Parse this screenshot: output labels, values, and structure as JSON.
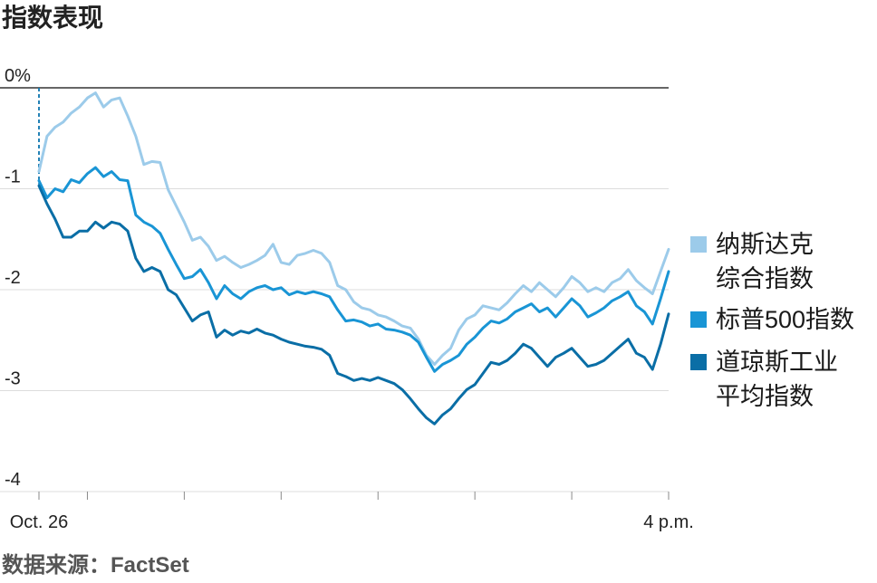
{
  "chart_data": {
    "type": "line",
    "title": "指数表现",
    "ylim": [
      -4,
      0
    ],
    "y_ticks": [
      {
        "value": 0,
        "label": "0%"
      },
      {
        "value": -1,
        "label": "-1"
      },
      {
        "value": -2,
        "label": "-2"
      },
      {
        "value": -3,
        "label": "-3"
      },
      {
        "value": -4,
        "label": "-4"
      }
    ],
    "x_labels": [
      {
        "x": "09:30",
        "label": "Oct. 26"
      },
      {
        "x": "16:00",
        "label": "4 p.m."
      }
    ],
    "grid": true,
    "legend": "right",
    "x": [
      "09:30",
      "09:35",
      "09:40",
      "09:45",
      "09:50",
      "09:55",
      "10:00",
      "10:05",
      "10:10",
      "10:15",
      "10:20",
      "10:25",
      "10:30",
      "10:35",
      "10:40",
      "10:45",
      "10:50",
      "10:55",
      "11:00",
      "11:05",
      "11:10",
      "11:15",
      "11:20",
      "11:25",
      "11:30",
      "11:35",
      "11:40",
      "11:45",
      "11:50",
      "11:55",
      "12:00",
      "12:05",
      "12:10",
      "12:15",
      "12:20",
      "12:25",
      "12:30",
      "12:35",
      "12:40",
      "12:45",
      "12:50",
      "12:55",
      "13:00",
      "13:05",
      "13:10",
      "13:15",
      "13:20",
      "13:25",
      "13:30",
      "13:35",
      "13:40",
      "13:45",
      "13:50",
      "13:55",
      "14:00",
      "14:05",
      "14:10",
      "14:15",
      "14:20",
      "14:25",
      "14:30",
      "14:35",
      "14:40",
      "14:45",
      "14:50",
      "14:55",
      "15:00",
      "15:05",
      "15:10",
      "15:15",
      "15:20",
      "15:25",
      "15:30",
      "15:35",
      "15:40",
      "15:45",
      "15:50",
      "15:55",
      "16:00"
    ],
    "series": [
      {
        "name": "纳斯达克综合指数",
        "color": "#9ccbea",
        "values": [
          -0.83,
          -0.48,
          -0.39,
          -0.34,
          -0.25,
          -0.19,
          -0.1,
          -0.05,
          -0.19,
          -0.12,
          -0.1,
          -0.28,
          -0.48,
          -0.76,
          -0.73,
          -0.74,
          -1.01,
          -1.17,
          -1.33,
          -1.51,
          -1.48,
          -1.57,
          -1.71,
          -1.67,
          -1.73,
          -1.78,
          -1.75,
          -1.71,
          -1.66,
          -1.55,
          -1.73,
          -1.75,
          -1.66,
          -1.64,
          -1.61,
          -1.64,
          -1.73,
          -1.96,
          -2.0,
          -2.12,
          -2.18,
          -2.2,
          -2.25,
          -2.27,
          -2.31,
          -2.36,
          -2.38,
          -2.49,
          -2.65,
          -2.74,
          -2.65,
          -2.58,
          -2.4,
          -2.29,
          -2.25,
          -2.16,
          -2.18,
          -2.2,
          -2.13,
          -2.04,
          -1.96,
          -2.02,
          -1.93,
          -2.0,
          -2.07,
          -1.98,
          -1.87,
          -1.93,
          -2.02,
          -1.98,
          -2.02,
          -1.93,
          -1.89,
          -1.8,
          -1.91,
          -1.98,
          -2.04,
          -1.82,
          -1.6
        ]
      },
      {
        "name": "标普500指数",
        "color": "#1995d5",
        "values": [
          -0.92,
          -1.09,
          -1.0,
          -1.03,
          -0.91,
          -0.94,
          -0.85,
          -0.79,
          -0.88,
          -0.83,
          -0.91,
          -0.92,
          -1.26,
          -1.33,
          -1.37,
          -1.44,
          -1.6,
          -1.75,
          -1.89,
          -1.87,
          -1.8,
          -1.93,
          -2.09,
          -1.96,
          -2.04,
          -2.09,
          -2.02,
          -1.98,
          -1.96,
          -2.0,
          -1.98,
          -2.05,
          -2.02,
          -2.04,
          -2.02,
          -2.04,
          -2.07,
          -2.2,
          -2.31,
          -2.3,
          -2.32,
          -2.36,
          -2.34,
          -2.39,
          -2.4,
          -2.42,
          -2.45,
          -2.52,
          -2.67,
          -2.81,
          -2.74,
          -2.7,
          -2.65,
          -2.54,
          -2.47,
          -2.38,
          -2.31,
          -2.33,
          -2.29,
          -2.22,
          -2.18,
          -2.14,
          -2.22,
          -2.18,
          -2.27,
          -2.18,
          -2.09,
          -2.16,
          -2.27,
          -2.23,
          -2.18,
          -2.11,
          -2.07,
          -2.02,
          -2.16,
          -2.22,
          -2.34,
          -2.09,
          -1.82
        ]
      },
      {
        "name": "道琼斯工业平均指数",
        "color": "#0a6ea6",
        "values": [
          -0.97,
          -1.15,
          -1.3,
          -1.48,
          -1.48,
          -1.42,
          -1.42,
          -1.33,
          -1.39,
          -1.33,
          -1.35,
          -1.42,
          -1.69,
          -1.82,
          -1.78,
          -1.82,
          -2.0,
          -2.05,
          -2.18,
          -2.31,
          -2.25,
          -2.22,
          -2.47,
          -2.4,
          -2.45,
          -2.41,
          -2.43,
          -2.39,
          -2.43,
          -2.45,
          -2.49,
          -2.52,
          -2.54,
          -2.56,
          -2.57,
          -2.59,
          -2.65,
          -2.83,
          -2.86,
          -2.9,
          -2.88,
          -2.9,
          -2.87,
          -2.9,
          -2.93,
          -2.99,
          -3.08,
          -3.18,
          -3.27,
          -3.33,
          -3.24,
          -3.18,
          -3.08,
          -2.99,
          -2.94,
          -2.83,
          -2.72,
          -2.74,
          -2.7,
          -2.63,
          -2.54,
          -2.58,
          -2.67,
          -2.76,
          -2.67,
          -2.63,
          -2.58,
          -2.67,
          -2.76,
          -2.74,
          -2.7,
          -2.63,
          -2.56,
          -2.49,
          -2.63,
          -2.67,
          -2.79,
          -2.54,
          -2.24
        ]
      }
    ]
  },
  "source": "数据来源：FactSet"
}
